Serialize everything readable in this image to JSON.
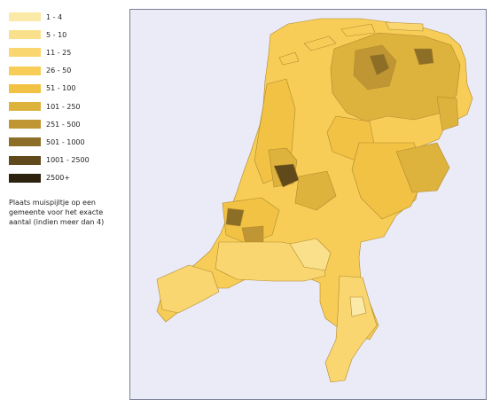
{
  "legend": {
    "items": [
      {
        "label": "1 - 4",
        "color": "#fbe9a7"
      },
      {
        "label": "5 - 10",
        "color": "#fbe08c"
      },
      {
        "label": "11 - 25",
        "color": "#fad670"
      },
      {
        "label": "26 - 50",
        "color": "#f7cd58"
      },
      {
        "label": "51 - 100",
        "color": "#f2c244"
      },
      {
        "label": "101 - 250",
        "color": "#ddb23d"
      },
      {
        "label": "251 - 500",
        "color": "#c09634"
      },
      {
        "label": "501 - 1000",
        "color": "#8d6e26"
      },
      {
        "label": "1001 - 2500",
        "color": "#60491a"
      },
      {
        "label": "2500+",
        "color": "#2d220d"
      }
    ],
    "note": "Plaats muispijltje op een gemeente voor het exacte aantal (indien meer dan 4)"
  },
  "map": {
    "background_color": "#eaebf6",
    "border_color": "#7a7f99",
    "outline_color": "#b08a2e"
  }
}
